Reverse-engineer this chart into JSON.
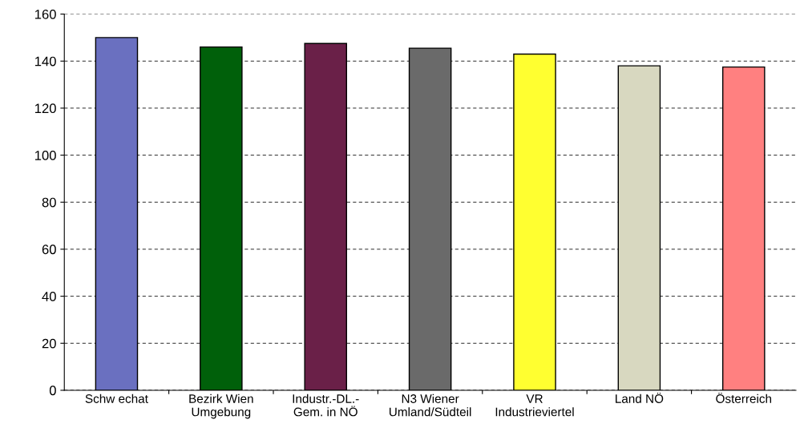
{
  "chart_data": {
    "type": "bar",
    "categories": [
      "Schw echat",
      "Bezirk Wien\nUmgebung",
      "Industr.-DL.-\nGem. in NÖ",
      "N3 Wiener\nUmland/Südteil",
      "VR\nIndustrieviertel",
      "Land NÖ",
      "Österreich"
    ],
    "values": [
      150,
      146,
      147.5,
      145.5,
      143,
      138,
      137.5
    ],
    "colors": [
      "#6a70c0",
      "#00600a",
      "#6a2048",
      "#6a6a6a",
      "#ffff30",
      "#d8d8c0",
      "#ff8080"
    ],
    "ylim": [
      0,
      160
    ],
    "yticks": [
      0,
      20,
      40,
      60,
      80,
      100,
      120,
      140,
      160
    ],
    "grid": "y"
  }
}
